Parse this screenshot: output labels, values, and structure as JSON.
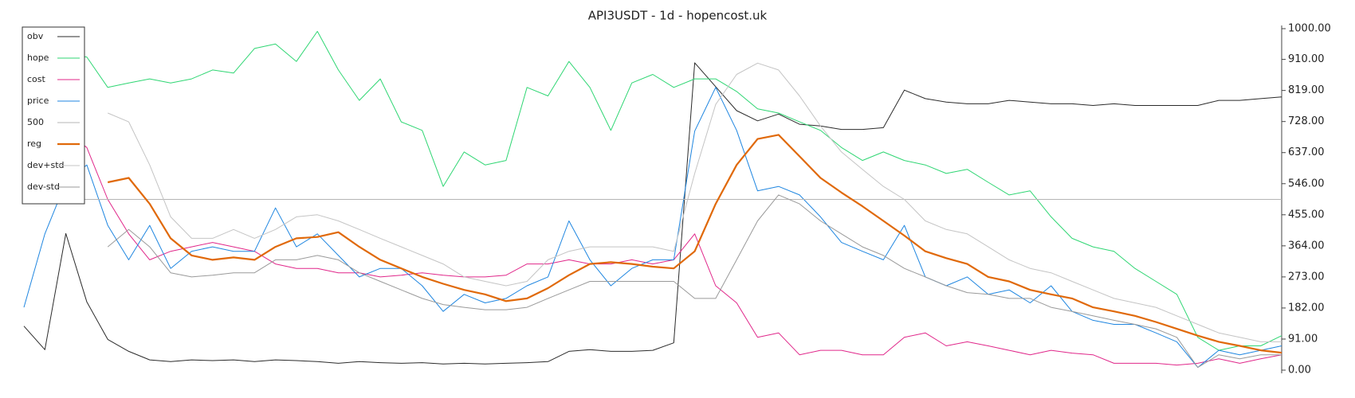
{
  "chart_data": {
    "type": "line",
    "title": "API3USDT - 1d - hopencost.uk",
    "ylim": [
      0,
      1000
    ],
    "yticks": [
      {
        "value": 0,
        "label": "0.00"
      },
      {
        "value": 91,
        "label": "91.00"
      },
      {
        "value": 182,
        "label": "182.00"
      },
      {
        "value": 273,
        "label": "273.00"
      },
      {
        "value": 364,
        "label": "364.00"
      },
      {
        "value": 455,
        "label": "455.00"
      },
      {
        "value": 546,
        "label": "546.00"
      },
      {
        "value": 637,
        "label": "637.00"
      },
      {
        "value": 728,
        "label": "728.00"
      },
      {
        "value": 819,
        "label": "819.00"
      },
      {
        "value": 910,
        "label": "910.00"
      },
      {
        "value": 1000,
        "label": "1000.00"
      }
    ],
    "legend": "upper left",
    "series": [
      {
        "name": "obv",
        "color": "#2b2b2b",
        "linewidth": 1,
        "values": [
          129,
          60,
          400,
          200,
          90,
          55,
          30,
          25,
          30,
          28,
          30,
          25,
          30,
          28,
          25,
          20,
          25,
          22,
          20,
          22,
          18,
          20,
          18,
          20,
          22,
          25,
          55,
          60,
          55,
          55,
          58,
          80,
          900,
          830,
          760,
          730,
          750,
          720,
          715,
          705,
          705,
          710,
          820,
          795,
          785,
          780,
          780,
          790,
          785,
          780,
          780,
          775,
          780,
          775,
          775,
          775,
          775,
          790,
          790,
          795,
          800
        ]
      },
      {
        "name": "hope",
        "color": "#2fd673",
        "linewidth": 1,
        "values": [
          920,
          920,
          924,
          917,
          828,
          841,
          853,
          841,
          853,
          879,
          870,
          942,
          955,
          904,
          992,
          879,
          790,
          853,
          727,
          702,
          538,
          639,
          601,
          614,
          828,
          803,
          904,
          828,
          702,
          841,
          866,
          828,
          853,
          853,
          816,
          765,
          753,
          727,
          702,
          652,
          614,
          639,
          614,
          601,
          576,
          588,
          550,
          513,
          525,
          449,
          386,
          361,
          348,
          298,
          260,
          222,
          96,
          58,
          71,
          71,
          101
        ]
      },
      {
        "name": "cost",
        "color": "#e0278a",
        "linewidth": 1,
        "values": [
          null,
          null,
          700,
          652,
          500,
          399,
          323,
          348,
          361,
          374,
          361,
          348,
          311,
          298,
          298,
          285,
          285,
          273,
          278,
          285,
          278,
          273,
          273,
          278,
          311,
          311,
          323,
          311,
          311,
          323,
          311,
          323,
          399,
          247,
          197,
          96,
          109,
          45,
          58,
          58,
          45,
          45,
          96,
          109,
          71,
          83,
          71,
          58,
          45,
          58,
          50,
          45,
          20,
          20,
          20,
          15,
          20,
          33,
          20,
          33,
          45
        ]
      },
      {
        "name": "price",
        "color": "#1f86e0",
        "linewidth": 1,
        "values": [
          184,
          399,
          550,
          601,
          424,
          323,
          424,
          298,
          348,
          361,
          348,
          348,
          475,
          361,
          399,
          336,
          273,
          298,
          298,
          247,
          172,
          222,
          197,
          210,
          247,
          273,
          437,
          323,
          247,
          298,
          323,
          323,
          700,
          828,
          702,
          525,
          538,
          513,
          449,
          374,
          348,
          323,
          424,
          273,
          247,
          273,
          222,
          235,
          197,
          247,
          172,
          146,
          134,
          134,
          109,
          83,
          8,
          58,
          45,
          58,
          71
        ]
      },
      {
        "name": "500",
        "color": "#b5b5b5",
        "linewidth": 1,
        "values": [
          500,
          500,
          500,
          500,
          500,
          500,
          500,
          500,
          500,
          500,
          500,
          500,
          500,
          500,
          500,
          500,
          500,
          500,
          500,
          500,
          500,
          500,
          500,
          500,
          500,
          500,
          500,
          500,
          500,
          500,
          500,
          500,
          500,
          500,
          500,
          500,
          500,
          500,
          500,
          500,
          500,
          500,
          500,
          500,
          500,
          500,
          500,
          500,
          500,
          500,
          500,
          500,
          500,
          500,
          500,
          500,
          500,
          500,
          500,
          500,
          500
        ]
      },
      {
        "name": "reg",
        "color": "#e0690a",
        "linewidth": 2.2,
        "values": [
          null,
          null,
          null,
          null,
          550,
          563,
          487,
          386,
          336,
          323,
          330,
          323,
          361,
          386,
          390,
          404,
          361,
          323,
          298,
          273,
          253,
          235,
          222,
          202,
          210,
          240,
          278,
          311,
          316,
          311,
          303,
          298,
          348,
          487,
          601,
          677,
          689,
          626,
          563,
          520,
          480,
          437,
          394,
          348,
          328,
          311,
          273,
          260,
          235,
          222,
          210,
          184,
          172,
          159,
          141,
          121,
          101,
          83,
          71,
          58,
          51
        ]
      },
      {
        "name": "dev+std",
        "color": "#c4c4c4",
        "linewidth": 1,
        "values": [
          null,
          null,
          null,
          null,
          753,
          727,
          601,
          449,
          386,
          386,
          412,
          386,
          412,
          449,
          455,
          437,
          412,
          386,
          361,
          336,
          311,
          273,
          260,
          247,
          260,
          323,
          348,
          361,
          361,
          361,
          361,
          348,
          576,
          778,
          866,
          899,
          879,
          803,
          715,
          639,
          588,
          538,
          500,
          437,
          412,
          399,
          361,
          323,
          298,
          285,
          260,
          235,
          210,
          197,
          184,
          159,
          134,
          109,
          96,
          83,
          83
        ]
      },
      {
        "name": "dev-std",
        "color": "#9a9a9a",
        "linewidth": 1,
        "values": [
          null,
          null,
          null,
          null,
          361,
          412,
          361,
          285,
          273,
          278,
          285,
          285,
          323,
          323,
          336,
          323,
          285,
          260,
          235,
          210,
          192,
          184,
          177,
          177,
          184,
          210,
          235,
          260,
          260,
          260,
          260,
          260,
          210,
          210,
          323,
          437,
          513,
          487,
          437,
          399,
          361,
          336,
          298,
          273,
          247,
          227,
          222,
          210,
          210,
          184,
          172,
          159,
          146,
          134,
          121,
          96,
          8,
          45,
          33,
          45,
          45
        ]
      }
    ]
  }
}
